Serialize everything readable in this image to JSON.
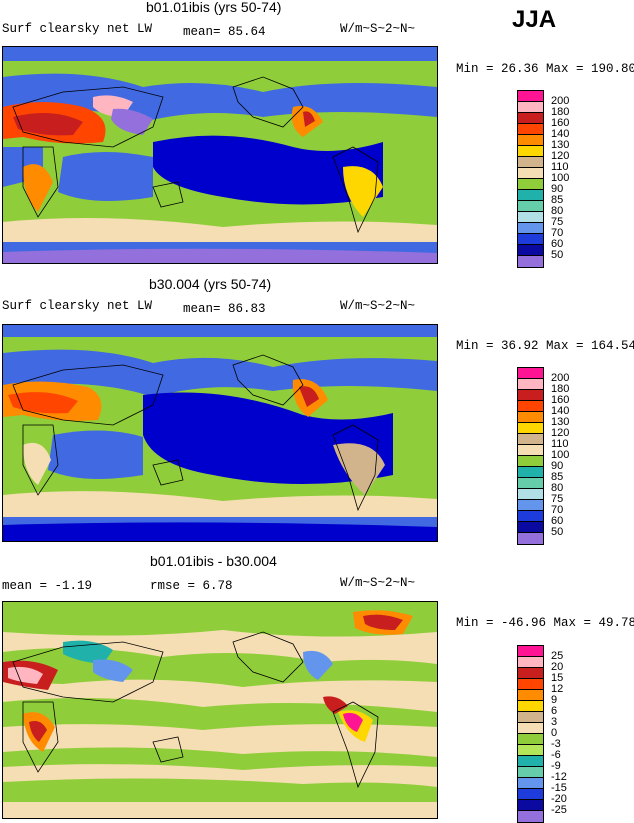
{
  "season": "JJA",
  "panels": [
    {
      "title": "b01.01ibis (yrs 50-74)",
      "left_text": "Surf clearsky net LW",
      "stat1": "mean=  85.64",
      "stat2": "",
      "units": "W/m~S~2~N~",
      "minmax": "Min =  26.36 Max = 190.80",
      "legend": {
        "labels": [
          "200",
          "180",
          "160",
          "140",
          "130",
          "120",
          "110",
          "100",
          "90",
          "85",
          "80",
          "75",
          "70",
          "60",
          "50"
        ],
        "colors": [
          "#ff1493",
          "#ffb6c1",
          "#c81e1e",
          "#ff4500",
          "#ff8c00",
          "#ffd700",
          "#d2b48c",
          "#f5deb3",
          "#8fce3a",
          "#20b2aa",
          "#66cdaa",
          "#b0e0e6",
          "#6495ed",
          "#1e3cdc",
          "#0a0aa0",
          "#9370db"
        ]
      },
      "fields": [
        {
          "cls": "bg",
          "color": "#32c8c8"
        },
        {
          "cls": "ocean",
          "color": "#4169e1"
        },
        {
          "cls": "deep",
          "color": "#0000cd"
        },
        {
          "cls": "land",
          "color": "#8fce3a"
        },
        {
          "cls": "tan",
          "color": "#f5deb3"
        },
        {
          "cls": "hot",
          "color": "#ff8c00"
        },
        {
          "cls": "hotter",
          "color": "#ff4500"
        },
        {
          "cls": "red",
          "color": "#c81e1e"
        },
        {
          "cls": "pink",
          "color": "#ffb6c1"
        },
        {
          "cls": "purple",
          "color": "#9370db"
        }
      ]
    },
    {
      "title": "b30.004 (yrs 50-74)",
      "left_text": "Surf clearsky net LW",
      "stat1": "mean=  86.83",
      "stat2": "",
      "units": "W/m~S~2~N~",
      "minmax": "Min =  36.92 Max = 164.54",
      "legend": {
        "labels": [
          "200",
          "180",
          "160",
          "140",
          "130",
          "120",
          "110",
          "100",
          "90",
          "85",
          "80",
          "75",
          "70",
          "60",
          "50"
        ],
        "colors": [
          "#ff1493",
          "#ffb6c1",
          "#c81e1e",
          "#ff4500",
          "#ff8c00",
          "#ffd700",
          "#d2b48c",
          "#f5deb3",
          "#8fce3a",
          "#20b2aa",
          "#66cdaa",
          "#b0e0e6",
          "#6495ed",
          "#1e3cdc",
          "#0a0aa0",
          "#9370db"
        ]
      }
    },
    {
      "title": "b01.01ibis - b30.004",
      "left_text": "mean =  -1.19",
      "stat1": "rmse =   6.78",
      "stat2": "",
      "units": "W/m~S~2~N~",
      "minmax": "Min = -46.96 Max =  49.78",
      "legend": {
        "labels": [
          "25",
          "20",
          "15",
          "12",
          "9",
          "6",
          "3",
          "0",
          "-3",
          "-6",
          "-9",
          "-12",
          "-15",
          "-20",
          "-25"
        ],
        "colors": [
          "#ff1493",
          "#ffb6c1",
          "#c81e1e",
          "#ff4500",
          "#ff8c00",
          "#ffd700",
          "#d2b48c",
          "#f5deb3",
          "#8fce3a",
          "#b4e65a",
          "#20b2aa",
          "#66cdaa",
          "#6495ed",
          "#1e3cdc",
          "#0a0aa0",
          "#9370db"
        ]
      }
    }
  ]
}
